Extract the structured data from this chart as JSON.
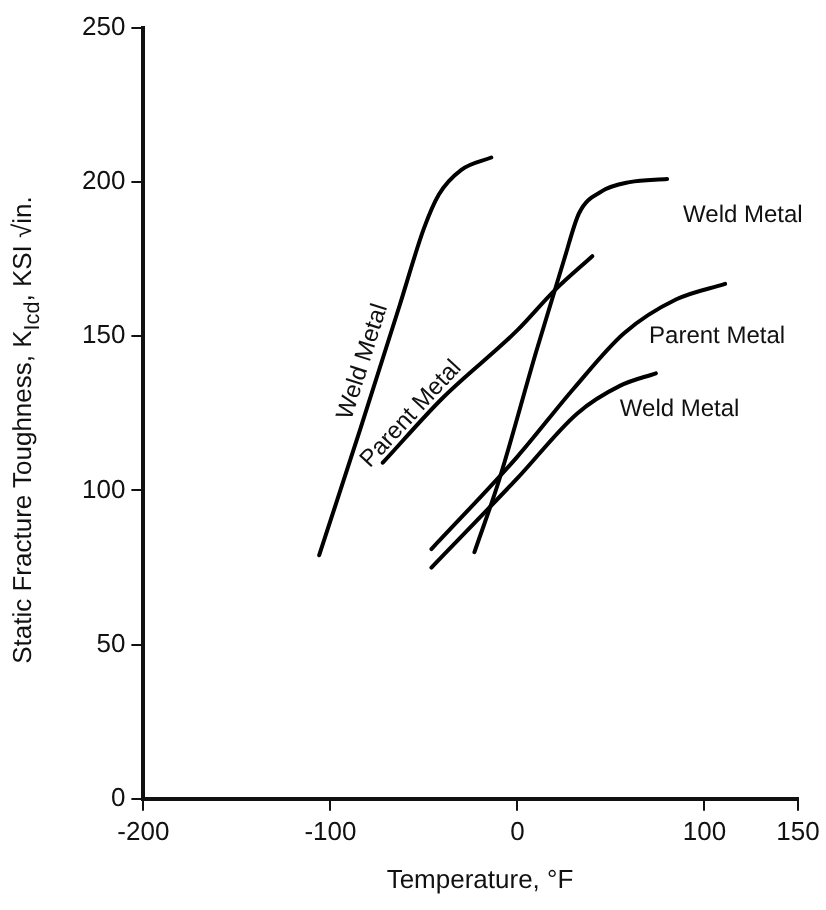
{
  "chart_data": {
    "type": "line",
    "xlabel": "Temperature, °F",
    "ylabel": "Static Fracture Toughness, K$_{Icd}$, KSI √in.",
    "xlim": [
      -200,
      150
    ],
    "xticks": [
      -200,
      -100,
      0,
      100,
      150
    ],
    "ylim": [
      0,
      250
    ],
    "yticks": [
      0,
      50,
      100,
      150,
      200,
      250
    ],
    "grid": false,
    "legend": false,
    "marker": "none",
    "line_style": "solid",
    "series": [
      {
        "name": "Weld Metal",
        "color": "#000000",
        "x": [
          -106,
          -84,
          -63,
          -50,
          -42,
          -30,
          -14
        ],
        "values": [
          79,
          120,
          160,
          185,
          196,
          204,
          208
        ]
      },
      {
        "name": "Parent Metal",
        "color": "#000000",
        "x": [
          -72,
          -40,
          0,
          20,
          40
        ],
        "values": [
          109,
          130,
          152,
          165,
          176
        ]
      },
      {
        "name": "Weld Metal",
        "color": "#000000",
        "x": [
          -23,
          -10,
          10,
          25,
          33,
          45,
          60,
          80
        ],
        "values": [
          80,
          103,
          145,
          175,
          190,
          197,
          200,
          201
        ]
      },
      {
        "name": "Parent Metal",
        "color": "#000000",
        "x": [
          -46,
          0,
          30,
          57,
          85,
          111
        ],
        "values": [
          81,
          111,
          133,
          151,
          162,
          167
        ]
      },
      {
        "name": "Weld Metal",
        "color": "#000000",
        "x": [
          -46,
          0,
          32,
          55,
          74
        ],
        "values": [
          75,
          104,
          125,
          134,
          138
        ]
      }
    ]
  }
}
